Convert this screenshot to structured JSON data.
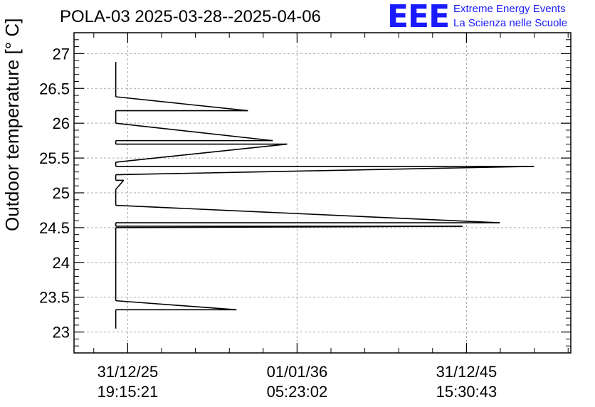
{
  "chart_data": {
    "type": "line",
    "title": "POLA-03 2025-03-28--2025-04-06",
    "ylabel": "Outdoor temperature [° C]",
    "xlabel": "",
    "ylim": [
      22.7,
      27.3
    ],
    "xlim": [
      0,
      1
    ],
    "grid": true,
    "y_ticks": [
      "23",
      "23.5",
      "24",
      "24.5",
      "25",
      "25.5",
      "26",
      "26.5",
      "27"
    ],
    "x_ticks": [
      {
        "line1": "31/12/25",
        "line2": "19:15:21"
      },
      {
        "line1": "01/01/36",
        "line2": "05:23:02"
      },
      {
        "line1": "31/12/45",
        "line2": "15:30:43"
      }
    ],
    "series": [
      {
        "color": "#000000",
        "points": [
          [
            0.084,
            26.88
          ],
          [
            0.084,
            26.5
          ],
          [
            0.084,
            26.38
          ],
          [
            0.35,
            26.18
          ],
          [
            0.084,
            26.18
          ],
          [
            0.084,
            26.0
          ],
          [
            0.4,
            25.75
          ],
          [
            0.084,
            25.75
          ],
          [
            0.084,
            25.7
          ],
          [
            0.429,
            25.7
          ],
          [
            0.084,
            25.44
          ],
          [
            0.084,
            25.38
          ],
          [
            0.926,
            25.38
          ],
          [
            0.084,
            25.26
          ],
          [
            0.084,
            25.18
          ],
          [
            0.1,
            25.18
          ],
          [
            0.084,
            25.05
          ],
          [
            0.084,
            24.82
          ],
          [
            0.857,
            24.57
          ],
          [
            0.084,
            24.57
          ],
          [
            0.084,
            24.52
          ],
          [
            0.782,
            24.52
          ],
          [
            0.084,
            24.5
          ],
          [
            0.084,
            24.1
          ],
          [
            0.084,
            23.45
          ],
          [
            0.327,
            23.32
          ],
          [
            0.084,
            23.32
          ],
          [
            0.084,
            23.05
          ]
        ]
      }
    ]
  },
  "logo": {
    "mark": "EEE",
    "line1": "Extreme Energy Events",
    "line2": "La Scienza nelle Scuole",
    "color": "#1a1aff"
  }
}
